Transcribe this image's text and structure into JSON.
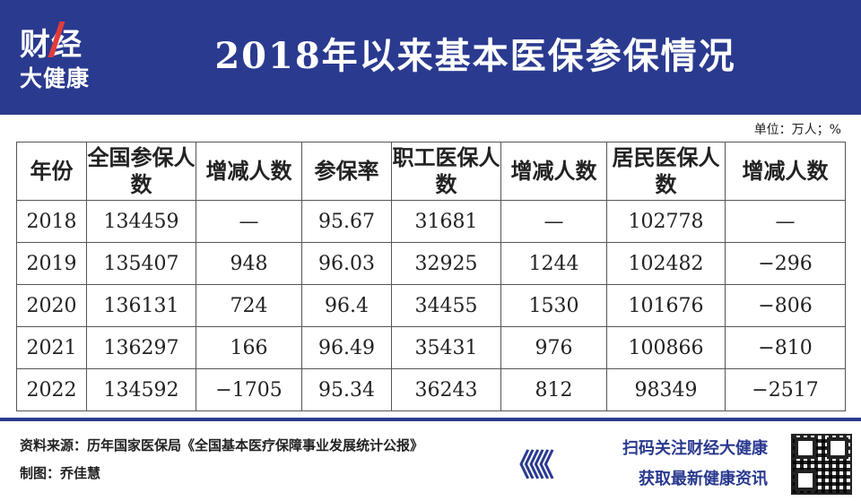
{
  "logo": {
    "line1": "财经",
    "line2": "大健康"
  },
  "title": "2018年以来基本医保参保情况",
  "unit": "单位：万人；%",
  "table": {
    "headers": [
      "年份",
      "全国参保人数",
      "增减人数",
      "参保率",
      "职工医保人数",
      "增减人数",
      "居民医保人数",
      "增减人数"
    ],
    "rows": [
      [
        "2018",
        "134459",
        "—",
        "95.67",
        "31681",
        "—",
        "102778",
        "—"
      ],
      [
        "2019",
        "135407",
        "948",
        "96.03",
        "32925",
        "1244",
        "102482",
        "−296"
      ],
      [
        "2020",
        "136131",
        "724",
        "96.4",
        "34455",
        "1530",
        "101676",
        "−806"
      ],
      [
        "2021",
        "136297",
        "166",
        "96.49",
        "35431",
        "976",
        "100866",
        "−810"
      ],
      [
        "2022",
        "134592",
        "−1705",
        "95.34",
        "36243",
        "812",
        "98349",
        "−2517"
      ]
    ]
  },
  "footer": {
    "source": "资料来源：历年国家医保局《全国基本医疗保障事业发展统计公报》",
    "author": "制图：乔佳慧",
    "arrows": "《《《",
    "cta1": "扫码关注财经大健康",
    "cta2": "获取最新健康资讯"
  },
  "colors": {
    "brand": "#2a3a8f",
    "accent": "#e23b3b"
  },
  "icons": {
    "qr": "qr-code-icon"
  }
}
